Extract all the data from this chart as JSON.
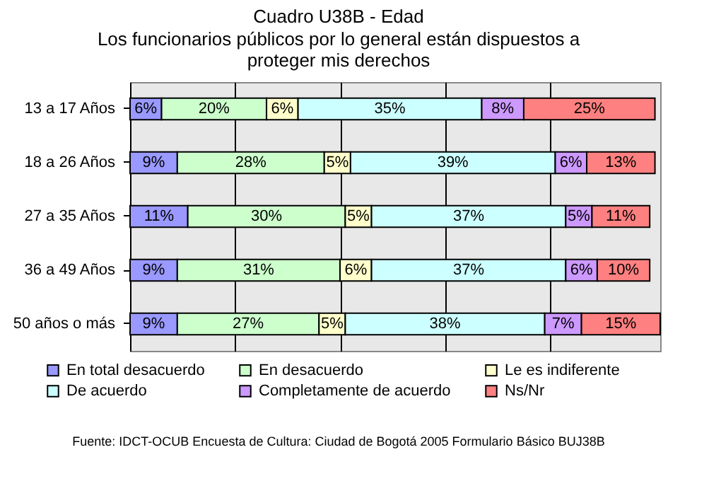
{
  "chart_data": {
    "type": "bar",
    "orientation": "horizontal",
    "stacked": true,
    "title": "Cuadro U38B - Edad",
    "subtitle": "Los funcionarios públicos por lo general están dispuestos a proteger mis derechos",
    "categories": [
      "13 a 17 Años",
      "18 a 26 Años",
      "27 a 35 Años",
      "36 a 49 Años",
      "50 años o más"
    ],
    "series": [
      {
        "name": "En total desacuerdo",
        "color": "#9999ff",
        "values": [
          6,
          9,
          11,
          9,
          9
        ],
        "value_labels": [
          "6%",
          "9%",
          "11%",
          "9%",
          "9%"
        ]
      },
      {
        "name": "En desacuerdo",
        "color": "#ccffcc",
        "values": [
          20,
          28,
          30,
          31,
          27
        ],
        "value_labels": [
          "20%",
          "28%",
          "30%",
          "31%",
          "27%"
        ]
      },
      {
        "name": "Le es indiferente",
        "color": "#ffffcc",
        "values": [
          6,
          5,
          5,
          6,
          5
        ],
        "value_labels": [
          "6%",
          "5%",
          "5%",
          "6%",
          "5%"
        ]
      },
      {
        "name": "De acuerdo",
        "color": "#ccffff",
        "values": [
          35,
          39,
          37,
          37,
          38
        ],
        "value_labels": [
          "35%",
          "39%",
          "37%",
          "37%",
          "38%"
        ]
      },
      {
        "name": "Completamente de acuerdo",
        "color": "#cc99ff",
        "values": [
          8,
          6,
          5,
          6,
          7
        ],
        "value_labels": [
          "8%",
          "6%",
          "5%",
          "6%",
          "7%"
        ]
      },
      {
        "name": "Ns/Nr",
        "color": "#ff8080",
        "values": [
          25,
          13,
          11,
          10,
          15
        ],
        "value_labels": [
          "25%",
          "13%",
          "11%",
          "10%",
          "15%"
        ]
      }
    ],
    "xlim": [
      0,
      101
    ],
    "xticks": [
      {
        "value": 20,
        "label": null
      },
      {
        "value": 40,
        "label": null
      },
      {
        "value": 60,
        "label": null
      },
      {
        "value": 80,
        "label": null
      }
    ],
    "grid": "x",
    "tick_labels": "y",
    "legend": "bottom",
    "annotations": [
      "Fuente: IDCT-OCUB Encuesta de Cultura: Ciudad de Bogotá 2005 Formulario Básico BUJ38B"
    ]
  }
}
